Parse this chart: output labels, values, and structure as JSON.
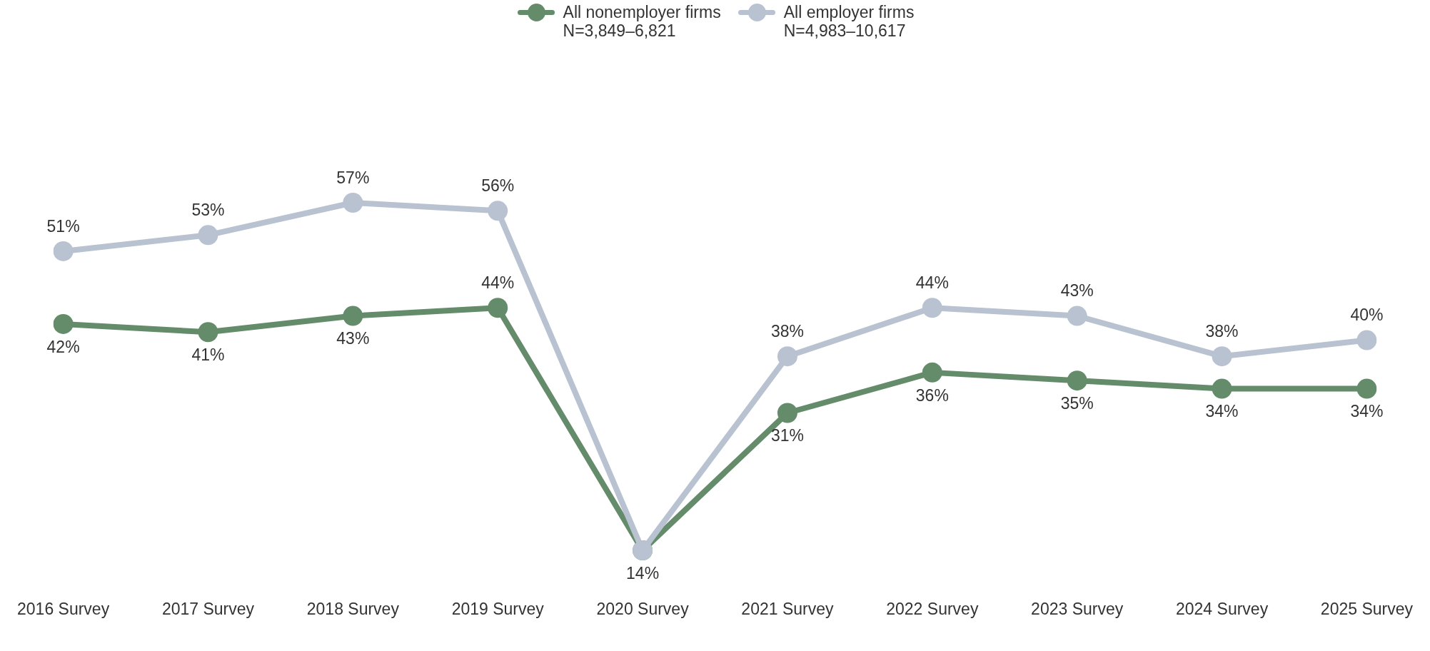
{
  "chart_data": {
    "type": "line",
    "categories": [
      "2016 Survey",
      "2017 Survey",
      "2018 Survey",
      "2019 Survey",
      "2020 Survey",
      "2021 Survey",
      "2022 Survey",
      "2023 Survey",
      "2024 Survey",
      "2025 Survey"
    ],
    "series": [
      {
        "name": "All nonemployer firms\nN=3,849–6,821",
        "color": "#648c6a",
        "values": [
          42,
          41,
          43,
          44,
          14,
          31,
          36,
          35,
          34,
          34
        ],
        "value_labels": [
          "42%",
          "41%",
          "43%",
          "44%",
          "14%",
          "31%",
          "36%",
          "35%",
          "34%",
          "34%"
        ]
      },
      {
        "name": "All employer firms\nN=4,983–10,617",
        "color": "#b8c2d0",
        "values": [
          51,
          53,
          57,
          56,
          14,
          38,
          44,
          43,
          38,
          40
        ],
        "value_labels": [
          "51%",
          "53%",
          "57%",
          "56%",
          null,
          "38%",
          "44%",
          "43%",
          "38%",
          "40%"
        ]
      }
    ],
    "tick_labels": "x",
    "grid": false,
    "legend": "top",
    "marker": "circle",
    "line_style": "solid"
  }
}
